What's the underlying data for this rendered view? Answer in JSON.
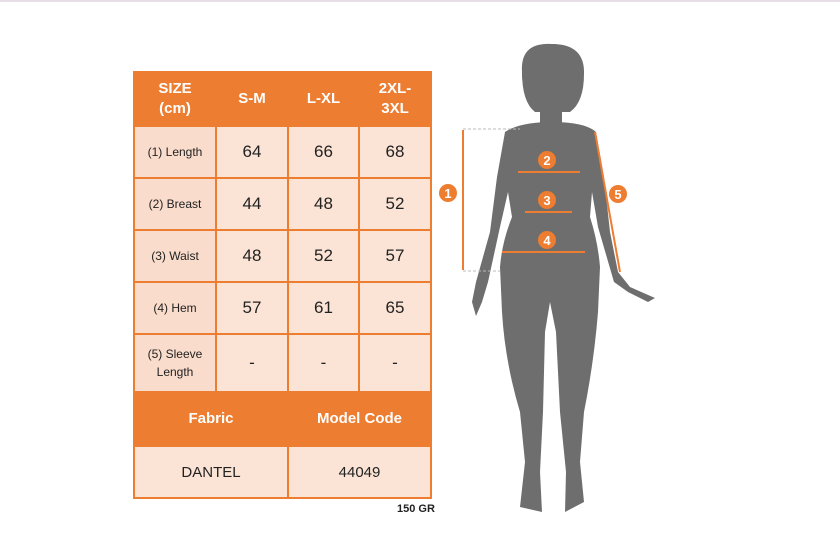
{
  "table": {
    "header": [
      "SIZE\n(cm)",
      "S-M",
      "L-XL",
      "2XL-\n3XL"
    ],
    "rows": [
      {
        "label": "(1) Length",
        "values": [
          "64",
          "66",
          "68"
        ]
      },
      {
        "label": "(2) Breast",
        "values": [
          "44",
          "48",
          "52"
        ]
      },
      {
        "label": "(3) Waist",
        "values": [
          "48",
          "52",
          "57"
        ]
      },
      {
        "label": "(4) Hem",
        "values": [
          "57",
          "61",
          "65"
        ]
      },
      {
        "label": "(5) Sleeve Length",
        "values": [
          "-",
          "-",
          "-"
        ]
      }
    ],
    "footer_headers": [
      "Fabric",
      "Model Code"
    ],
    "footer_values": [
      "DANTEL",
      "44049"
    ]
  },
  "weight": "150 GR",
  "figure": {
    "markers": [
      "1",
      "2",
      "3",
      "4",
      "5"
    ]
  },
  "colors": {
    "accent": "#ED7D31",
    "cell": "#FBE4D5",
    "silhouette": "#6E6E6E"
  }
}
